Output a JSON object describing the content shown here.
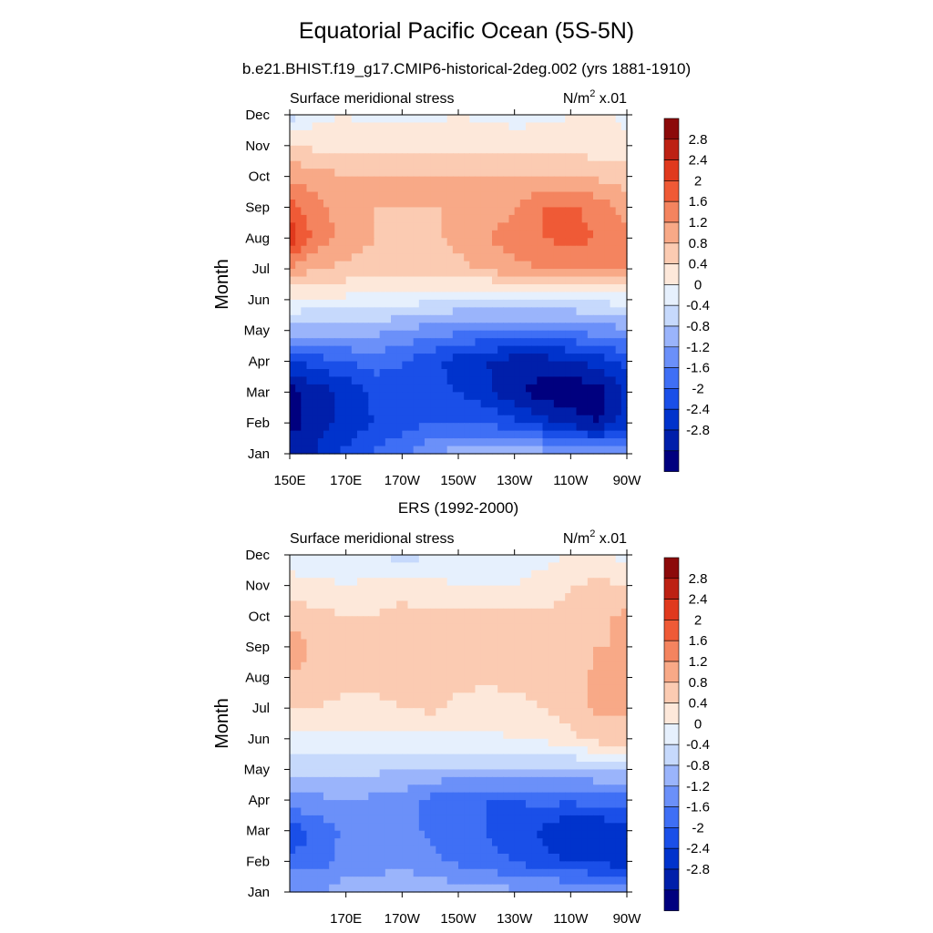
{
  "page": {
    "title": "Equatorial Pacific Ocean (5S-5N)",
    "subtitle": "b.e21.BHIST.f19_g17.CMIP6-historical-2deg.002 (yrs 1881-1910)"
  },
  "chart_data": [
    {
      "type": "heatmap",
      "panel_title": "",
      "left_label": "Surface meridional stress",
      "right_label": "N/m",
      "right_label_sup": "2",
      "right_label_suffix": " x.01",
      "ylabel": "Month",
      "y_ticks": [
        "Jan",
        "Feb",
        "Mar",
        "Apr",
        "May",
        "Jun",
        "Jul",
        "Aug",
        "Sep",
        "Oct",
        "Nov",
        "Dec"
      ],
      "x_ticks": [
        "150E",
        "170E",
        "170W",
        "150W",
        "130W",
        "110W",
        "90W"
      ],
      "x_tick_positions": [
        150,
        170,
        190,
        210,
        230,
        250,
        270
      ],
      "x_range": [
        150,
        270
      ],
      "colorbar_labels": [
        "2.8",
        "2.4",
        "2",
        "1.6",
        "1.2",
        "0.8",
        "0.4",
        "0",
        "-0.4",
        "-0.8",
        "-1.2",
        "-1.6",
        "-2",
        "-2.4",
        "-2.8"
      ],
      "grid": {
        "lon": [
          150,
          160,
          170,
          180,
          190,
          200,
          210,
          220,
          230,
          240,
          250,
          260,
          270
        ],
        "rows": [
          [
            -2.5,
            -2.4,
            -1.9,
            -1.5,
            -1.3,
            -0.8,
            -0.6,
            -0.6,
            -0.5,
            -0.6,
            -0.8,
            -0.8,
            -0.6
          ],
          [
            -3.0,
            -2.5,
            -2.3,
            -2.0,
            -1.8,
            -1.6,
            -1.6,
            -1.6,
            -1.9,
            -2.2,
            -2.6,
            -2.8,
            -2.2
          ],
          [
            -3.0,
            -2.6,
            -2.3,
            -1.9,
            -1.7,
            -1.8,
            -2.0,
            -2.3,
            -2.7,
            -3.0,
            -3.1,
            -3.0,
            -2.3
          ],
          [
            -2.0,
            -1.8,
            -1.6,
            -1.4,
            -1.6,
            -1.9,
            -2.2,
            -2.4,
            -2.6,
            -2.6,
            -2.5,
            -2.2,
            -1.9
          ],
          [
            -0.6,
            -0.6,
            -0.6,
            -0.7,
            -0.8,
            -1.0,
            -1.1,
            -1.2,
            -1.2,
            -1.2,
            -1.1,
            -1.0,
            -0.9
          ],
          [
            0.4,
            0.3,
            0.3,
            0.2,
            0.2,
            0.1,
            0.0,
            -0.1,
            -0.1,
            -0.1,
            0.0,
            0.1,
            0.2
          ],
          [
            1.5,
            1.2,
            1.1,
            1.0,
            0.9,
            0.9,
            1.1,
            1.3,
            1.5,
            1.6,
            1.7,
            1.8,
            1.7
          ],
          [
            2.7,
            1.8,
            1.5,
            1.2,
            1.1,
            1.1,
            1.3,
            1.6,
            1.8,
            2.0,
            2.1,
            2.0,
            1.7
          ],
          [
            2.2,
            1.7,
            1.4,
            1.2,
            1.2,
            1.2,
            1.2,
            1.3,
            1.6,
            2.0,
            2.1,
            1.8,
            1.4
          ],
          [
            1.5,
            1.4,
            1.2,
            1.2,
            1.2,
            1.2,
            1.2,
            1.2,
            1.2,
            1.2,
            1.2,
            1.1,
            1.0
          ],
          [
            0.8,
            0.7,
            0.6,
            0.6,
            0.6,
            0.7,
            0.7,
            0.7,
            0.7,
            0.6,
            0.6,
            0.6,
            0.5
          ],
          [
            -0.2,
            0.3,
            0.4,
            0.3,
            0.3,
            0.3,
            0.4,
            0.3,
            0.2,
            0.3,
            0.4,
            0.5,
            0.3
          ]
        ]
      }
    },
    {
      "type": "heatmap",
      "panel_title": "ERS (1992-2000)",
      "left_label": "Surface meridional stress",
      "right_label": "N/m",
      "right_label_sup": "2",
      "right_label_suffix": " x.01",
      "ylabel": "Month",
      "y_ticks": [
        "Jan",
        "Feb",
        "Mar",
        "Apr",
        "May",
        "Jun",
        "Jul",
        "Aug",
        "Sep",
        "Oct",
        "Nov",
        "Dec"
      ],
      "x_ticks": [
        "170E",
        "170W",
        "150W",
        "130W",
        "110W",
        "90W"
      ],
      "x_tick_positions": [
        170,
        190,
        210,
        230,
        250,
        270
      ],
      "x_range": [
        150,
        270
      ],
      "colorbar_labels": [
        "2.8",
        "2.4",
        "2",
        "1.6",
        "1.2",
        "0.8",
        "0.4",
        "0",
        "-0.4",
        "-0.8",
        "-1.2",
        "-1.6",
        "-2",
        "-2.4",
        "-2.8"
      ],
      "grid": {
        "lon": [
          150,
          160,
          170,
          180,
          190,
          200,
          210,
          220,
          230,
          240,
          250,
          260,
          270
        ],
        "rows": [
          [
            -0.7,
            -0.8,
            -0.6,
            -0.6,
            -0.5,
            -0.5,
            -0.6,
            -0.6,
            -0.7,
            -0.7,
            -0.8,
            -0.9,
            -1.0
          ],
          [
            -1.5,
            -1.4,
            -1.0,
            -1.0,
            -0.9,
            -1.1,
            -1.3,
            -1.5,
            -1.6,
            -1.9,
            -2.0,
            -2.1,
            -2.2
          ],
          [
            -1.9,
            -1.5,
            -1.1,
            -1.2,
            -1.0,
            -1.3,
            -1.5,
            -1.6,
            -1.8,
            -2.1,
            -2.4,
            -2.4,
            -2.2
          ],
          [
            -0.9,
            -0.9,
            -0.8,
            -0.9,
            -1.0,
            -1.3,
            -1.6,
            -1.6,
            -1.6,
            -1.5,
            -1.5,
            -1.4,
            -1.5
          ],
          [
            -0.3,
            -0.3,
            -0.3,
            -0.3,
            -0.4,
            -0.4,
            -0.5,
            -0.5,
            -0.5,
            -0.5,
            -0.5,
            -0.4,
            -0.3
          ],
          [
            0.2,
            0.3,
            0.3,
            0.3,
            0.3,
            0.3,
            0.3,
            0.3,
            0.4,
            0.5,
            0.7,
            1.0,
            1.0
          ],
          [
            0.8,
            0.8,
            0.7,
            0.7,
            0.8,
            0.9,
            0.7,
            0.6,
            0.7,
            0.8,
            1.0,
            1.3,
            1.3
          ],
          [
            1.1,
            1.0,
            0.9,
            0.9,
            1.0,
            1.1,
            0.9,
            0.9,
            0.9,
            0.9,
            1.0,
            1.3,
            1.3
          ],
          [
            1.6,
            1.0,
            1.0,
            1.0,
            1.2,
            1.2,
            1.0,
            1.0,
            1.1,
            1.0,
            1.1,
            1.2,
            1.2
          ],
          [
            1.0,
            0.9,
            0.8,
            0.8,
            1.0,
            0.9,
            0.9,
            0.9,
            0.9,
            0.9,
            0.9,
            1.1,
            1.3
          ],
          [
            0.6,
            0.5,
            0.4,
            0.5,
            0.5,
            0.5,
            0.4,
            0.4,
            0.4,
            0.5,
            0.8,
            0.9,
            0.8
          ],
          [
            0.1,
            0.1,
            0.1,
            0.1,
            -0.2,
            0.0,
            0.1,
            0.2,
            0.3,
            0.3,
            0.4,
            0.4,
            0.3
          ]
        ]
      }
    }
  ],
  "colors": {
    "levels": [
      "#00007f",
      "#001faa",
      "#0033cc",
      "#1a4fe8",
      "#3f6ff5",
      "#6b90f9",
      "#9ab4fb",
      "#c6d9fc",
      "#e6f0fd",
      "#fde8da",
      "#fbcbb2",
      "#f8a987",
      "#f4845f",
      "#ef5a36",
      "#e0391d",
      "#bd2113",
      "#8c0a0a"
    ]
  }
}
